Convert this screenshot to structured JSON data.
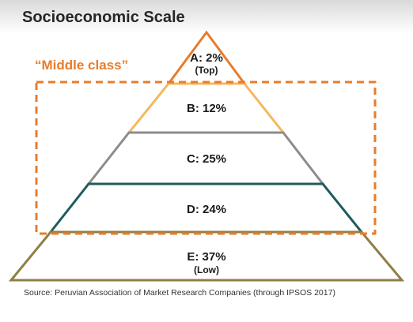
{
  "title": "Socioeconomic Scale",
  "highlight": {
    "label": "“Middle class”",
    "color": "#e87c2b"
  },
  "levels": [
    {
      "label": "A: 2%",
      "sub": "(Top)",
      "value": 2,
      "color": "#e87c2b"
    },
    {
      "label": "B: 12%",
      "sub": "",
      "value": 12,
      "color": "#f4b860"
    },
    {
      "label": "C: 25%",
      "sub": "",
      "value": 25,
      "color": "#8c8c8c"
    },
    {
      "label": "D: 24%",
      "sub": "",
      "value": 24,
      "color": "#1f5c5c"
    },
    {
      "label": "E: 37%",
      "sub": "(Low)",
      "value": 37,
      "color": "#8f7f45"
    }
  ],
  "source": "Source: Peruvian Association of Market Research Companies (through IPSOS 2017)"
}
